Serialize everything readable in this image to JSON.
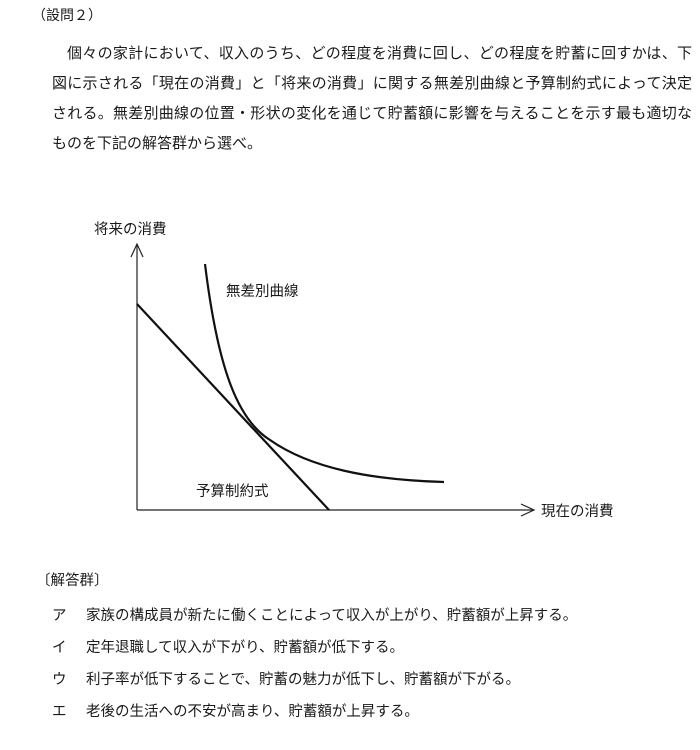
{
  "question": {
    "label": "（設問２）",
    "text": "個々の家計において、収入のうち、どの程度を消費に回し、どの程度を貯蓄に回すかは、下図に示される「現在の消費」と「将来の消費」に関する無差別曲線と予算制約式によって決定される。無差別曲線の位置・形状の変化を通じて貯蓄額に影響を与えることを示す最も適切なものを下記の解答群から選べ。"
  },
  "figure": {
    "y_axis_label": "将来の消費",
    "x_axis_label": "現在の消費",
    "curve_label": "無差別曲線",
    "line_label": "予算制約式"
  },
  "answers": {
    "header": "〔解答群〕",
    "items": [
      {
        "mark": "ア",
        "text": "家族の構成員が新たに働くことによって収入が上がり、貯蓄額が上昇する。"
      },
      {
        "mark": "イ",
        "text": "定年退職して収入が下がり、貯蓄額が低下する。"
      },
      {
        "mark": "ウ",
        "text": "利子率が低下することで、貯蓄の魅力が低下し、貯蓄額が下がる。"
      },
      {
        "mark": "エ",
        "text": "老後の生活への不安が高まり、貯蓄額が上昇する。"
      }
    ]
  }
}
